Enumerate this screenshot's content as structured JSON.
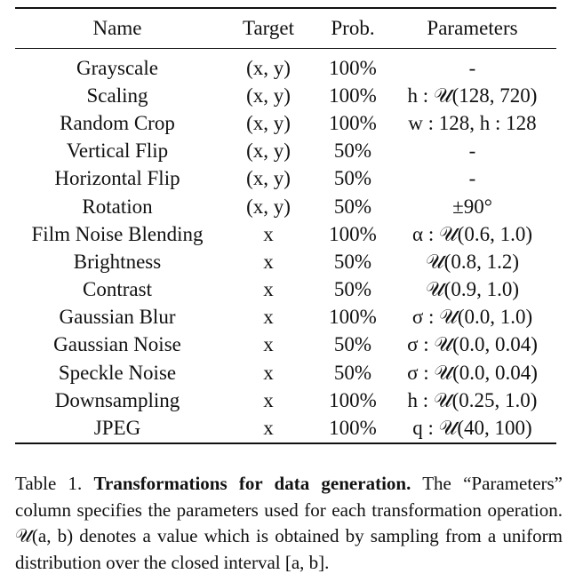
{
  "table": {
    "headers": [
      "Name",
      "Target",
      "Prob.",
      "Parameters"
    ],
    "rows": [
      [
        "Grayscale",
        "(x, y)",
        "100%",
        "-"
      ],
      [
        "Scaling",
        "(x, y)",
        "100%",
        "h : 𝒰(128, 720)"
      ],
      [
        "Random Crop",
        "(x, y)",
        "100%",
        "w : 128, h : 128"
      ],
      [
        "Vertical Flip",
        "(x, y)",
        "50%",
        "-"
      ],
      [
        "Horizontal Flip",
        "(x, y)",
        "50%",
        "-"
      ],
      [
        "Rotation",
        "(x, y)",
        "50%",
        "±90°"
      ],
      [
        "Film Noise Blending",
        "x",
        "100%",
        "α : 𝒰(0.6, 1.0)"
      ],
      [
        "Brightness",
        "x",
        "50%",
        "𝒰(0.8, 1.2)"
      ],
      [
        "Contrast",
        "x",
        "50%",
        "𝒰(0.9, 1.0)"
      ],
      [
        "Gaussian Blur",
        "x",
        "100%",
        "σ : 𝒰(0.0, 1.0)"
      ],
      [
        "Gaussian Noise",
        "x",
        "50%",
        "σ : 𝒰(0.0, 0.04)"
      ],
      [
        "Speckle Noise",
        "x",
        "50%",
        "σ : 𝒰(0.0, 0.04)"
      ],
      [
        "Downsampling",
        "x",
        "100%",
        "h : 𝒰(0.25, 1.0)"
      ],
      [
        "JPEG",
        "x",
        "100%",
        "q : 𝒰(40, 100)"
      ]
    ]
  },
  "caption": {
    "label": "Table 1.",
    "title": "Transformations for data generation.",
    "body": "The “Parameters” column specifies the parameters used for each transformation operation. 𝒰(a, b) denotes a value which is obtained by sampling from a uniform distribution over the closed interval [a, b]."
  }
}
